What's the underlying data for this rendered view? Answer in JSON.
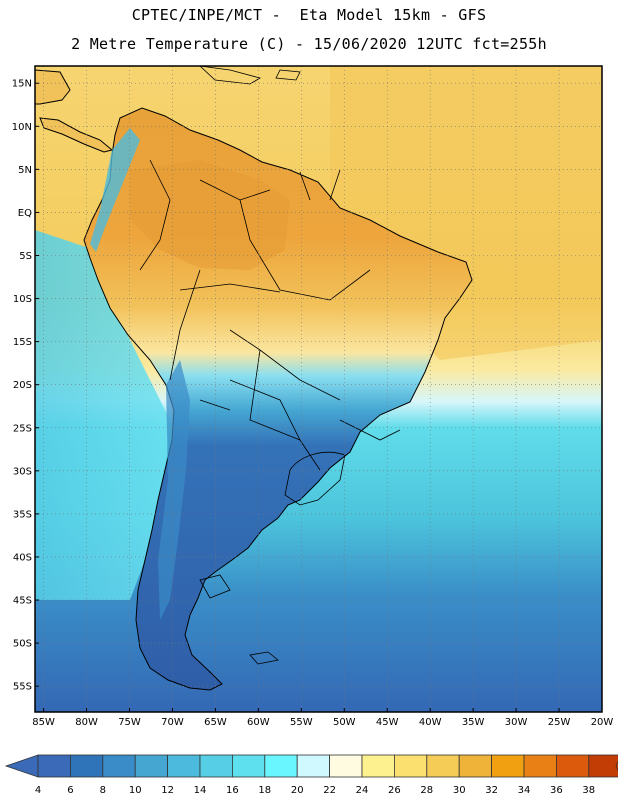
{
  "header": {
    "line1": "CPTEC/INPE/MCT -  Eta Model 15km - GFS",
    "line2": "2 Metre Temperature (C) - 15/06/2020 12UTC fct=255h"
  },
  "axes": {
    "lat_labels": [
      "15N",
      "10N",
      "5N",
      "EQ",
      "5S",
      "10S",
      "15S",
      "20S",
      "25S",
      "30S",
      "35S",
      "40S",
      "45S",
      "50S",
      "55S"
    ],
    "lat_values": [
      15,
      10,
      5,
      0,
      -5,
      -10,
      -15,
      -20,
      -25,
      -30,
      -35,
      -40,
      -45,
      -50,
      -55
    ],
    "lon_labels": [
      "85W",
      "80W",
      "75W",
      "70W",
      "65W",
      "60W",
      "55W",
      "50W",
      "45W",
      "40W",
      "35W",
      "30W",
      "25W",
      "20W"
    ],
    "lon_values": [
      -85,
      -80,
      -75,
      -70,
      -65,
      -60,
      -55,
      -50,
      -45,
      -40,
      -35,
      -30,
      -25,
      -20
    ],
    "lon_range": [
      -86,
      -20
    ],
    "lat_range": [
      -58,
      17
    ],
    "grid": "dotted"
  },
  "colorbar": {
    "labels": [
      "4",
      "6",
      "8",
      "10",
      "12",
      "14",
      "16",
      "18",
      "20",
      "22",
      "24",
      "26",
      "28",
      "30",
      "32",
      "34",
      "36",
      "38"
    ],
    "colors": [
      "#3a6ab8",
      "#2f74b8",
      "#3a8cc8",
      "#45a6d2",
      "#4cbadd",
      "#55cee6",
      "#5ee0ee",
      "#6af6ff",
      "#d0f8ff",
      "#fffbe0",
      "#fdf08e",
      "#fbe070",
      "#f5cc55",
      "#f0b33a",
      "#f0a010",
      "#e98016",
      "#dc5a0c",
      "#c23c06"
    ]
  },
  "colors": {
    "ocean_warm": "#f4d26a",
    "ocean_mid": "#5bd4e4",
    "ocean_cold": "#3678c0",
    "land_hot": "#e9a03c",
    "land_warm": "#f2c25a",
    "land_cool": "#7ed6ee",
    "land_cold": "#2f5ea8",
    "coast": "#000000"
  }
}
